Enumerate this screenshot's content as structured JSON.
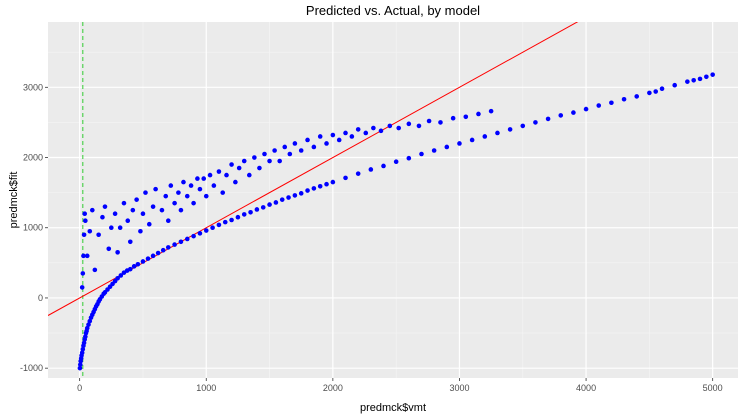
{
  "chart_data": {
    "type": "scatter",
    "title": "Predicted vs. Actual, by model",
    "xlabel": "predmck$vmt",
    "ylabel": "predmck$fit",
    "xlim": [
      -250,
      5200
    ],
    "ylim": [
      -1140,
      3930
    ],
    "x_ticks": [
      0,
      1000,
      2000,
      3000,
      4000,
      5000
    ],
    "y_ticks": [
      -1000,
      0,
      1000,
      2000,
      3000
    ],
    "grid": true,
    "panel_background": "#ebebeb",
    "point_color": "#0000ff",
    "reference_line": {
      "slope": 1,
      "intercept": 0,
      "color": "#ff0000"
    },
    "vertical_line": {
      "x": 25,
      "color": "#33cc33",
      "style": "dashed"
    },
    "trend_model": {
      "form": "a*sqrt(x)+b",
      "a": 66.2,
      "b": -926
    },
    "points": [
      [
        2,
        -1000
      ],
      [
        5,
        -950
      ],
      [
        8,
        -900
      ],
      [
        12,
        -860
      ],
      [
        15,
        -820
      ],
      [
        20,
        -780
      ],
      [
        25,
        -730
      ],
      [
        30,
        -680
      ],
      [
        35,
        -640
      ],
      [
        40,
        -590
      ],
      [
        45,
        -550
      ],
      [
        50,
        -500
      ],
      [
        55,
        -470
      ],
      [
        60,
        -430
      ],
      [
        70,
        -380
      ],
      [
        80,
        -330
      ],
      [
        90,
        -280
      ],
      [
        100,
        -240
      ],
      [
        110,
        -200
      ],
      [
        120,
        -160
      ],
      [
        130,
        -120
      ],
      [
        140,
        -90
      ],
      [
        150,
        -50
      ],
      [
        160,
        -20
      ],
      [
        175,
        20
      ],
      [
        190,
        60
      ],
      [
        200,
        80
      ],
      [
        220,
        120
      ],
      [
        240,
        160
      ],
      [
        260,
        200
      ],
      [
        280,
        240
      ],
      [
        300,
        280
      ],
      [
        325,
        320
      ],
      [
        350,
        360
      ],
      [
        375,
        390
      ],
      [
        400,
        410
      ],
      [
        430,
        450
      ],
      [
        460,
        480
      ],
      [
        500,
        520
      ],
      [
        540,
        560
      ],
      [
        580,
        600
      ],
      [
        620,
        640
      ],
      [
        660,
        680
      ],
      [
        700,
        720
      ],
      [
        750,
        760
      ],
      [
        800,
        800
      ],
      [
        850,
        840
      ],
      [
        900,
        880
      ],
      [
        950,
        920
      ],
      [
        1000,
        960
      ],
      [
        1050,
        1000
      ],
      [
        1100,
        1040
      ],
      [
        1150,
        1080
      ],
      [
        1200,
        1110
      ],
      [
        1250,
        1150
      ],
      [
        1300,
        1190
      ],
      [
        1350,
        1220
      ],
      [
        1400,
        1260
      ],
      [
        1450,
        1290
      ],
      [
        1500,
        1330
      ],
      [
        1550,
        1360
      ],
      [
        1600,
        1400
      ],
      [
        1650,
        1430
      ],
      [
        1700,
        1460
      ],
      [
        1750,
        1490
      ],
      [
        1800,
        1530
      ],
      [
        1850,
        1560
      ],
      [
        1900,
        1590
      ],
      [
        1950,
        1620
      ],
      [
        2000,
        1650
      ],
      [
        2100,
        1710
      ],
      [
        2200,
        1770
      ],
      [
        2300,
        1830
      ],
      [
        2400,
        1880
      ],
      [
        2500,
        1940
      ],
      [
        2600,
        1990
      ],
      [
        2700,
        2050
      ],
      [
        2800,
        2100
      ],
      [
        2900,
        2150
      ],
      [
        3000,
        2200
      ],
      [
        3100,
        2250
      ],
      [
        3200,
        2300
      ],
      [
        3300,
        2350
      ],
      [
        3400,
        2400
      ],
      [
        3500,
        2450
      ],
      [
        3600,
        2500
      ],
      [
        3700,
        2550
      ],
      [
        3800,
        2600
      ],
      [
        3900,
        2640
      ],
      [
        4000,
        2690
      ],
      [
        4100,
        2740
      ],
      [
        4200,
        2780
      ],
      [
        4300,
        2830
      ],
      [
        4400,
        2870
      ],
      [
        4500,
        2920
      ],
      [
        4550,
        2940
      ],
      [
        4600,
        2980
      ],
      [
        4700,
        3030
      ],
      [
        4800,
        3080
      ],
      [
        4850,
        3100
      ],
      [
        4900,
        3120
      ],
      [
        4950,
        3150
      ],
      [
        5000,
        3180
      ],
      [
        20,
        150
      ],
      [
        25,
        350
      ],
      [
        30,
        600
      ],
      [
        35,
        900
      ],
      [
        40,
        1200
      ],
      [
        45,
        1100
      ],
      [
        60,
        600
      ],
      [
        80,
        950
      ],
      [
        100,
        1250
      ],
      [
        120,
        400
      ],
      [
        150,
        900
      ],
      [
        180,
        1150
      ],
      [
        200,
        1300
      ],
      [
        230,
        700
      ],
      [
        250,
        1000
      ],
      [
        280,
        1200
      ],
      [
        300,
        650
      ],
      [
        320,
        1000
      ],
      [
        350,
        1350
      ],
      [
        380,
        1100
      ],
      [
        400,
        800
      ],
      [
        420,
        1250
      ],
      [
        450,
        1400
      ],
      [
        480,
        950
      ],
      [
        500,
        1200
      ],
      [
        520,
        1500
      ],
      [
        550,
        1050
      ],
      [
        580,
        1300
      ],
      [
        600,
        1550
      ],
      [
        650,
        1250
      ],
      [
        680,
        1450
      ],
      [
        700,
        1100
      ],
      [
        720,
        1600
      ],
      [
        750,
        1350
      ],
      [
        780,
        1500
      ],
      [
        800,
        1250
      ],
      [
        820,
        1650
      ],
      [
        850,
        1450
      ],
      [
        880,
        1600
      ],
      [
        900,
        1350
      ],
      [
        930,
        1700
      ],
      [
        950,
        1550
      ],
      [
        980,
        1700
      ],
      [
        1000,
        1450
      ],
      [
        1030,
        1750
      ],
      [
        1060,
        1600
      ],
      [
        1100,
        1800
      ],
      [
        1130,
        1500
      ],
      [
        1160,
        1750
      ],
      [
        1200,
        1900
      ],
      [
        1230,
        1650
      ],
      [
        1260,
        1850
      ],
      [
        1300,
        1950
      ],
      [
        1340,
        1750
      ],
      [
        1380,
        2000
      ],
      [
        1420,
        1850
      ],
      [
        1460,
        2050
      ],
      [
        1500,
        1950
      ],
      [
        1540,
        2100
      ],
      [
        1580,
        1950
      ],
      [
        1620,
        2150
      ],
      [
        1660,
        2050
      ],
      [
        1700,
        2200
      ],
      [
        1750,
        2100
      ],
      [
        1800,
        2250
      ],
      [
        1850,
        2150
      ],
      [
        1900,
        2300
      ],
      [
        1950,
        2200
      ],
      [
        2000,
        2320
      ],
      [
        2050,
        2250
      ],
      [
        2100,
        2350
      ],
      [
        2150,
        2300
      ],
      [
        2200,
        2400
      ],
      [
        2260,
        2350
      ],
      [
        2320,
        2420
      ],
      [
        2380,
        2380
      ],
      [
        2450,
        2450
      ],
      [
        2520,
        2420
      ],
      [
        2600,
        2480
      ],
      [
        2680,
        2450
      ],
      [
        2760,
        2520
      ],
      [
        2850,
        2500
      ],
      [
        2950,
        2560
      ],
      [
        3050,
        2580
      ],
      [
        3150,
        2620
      ],
      [
        3250,
        2660
      ]
    ]
  }
}
